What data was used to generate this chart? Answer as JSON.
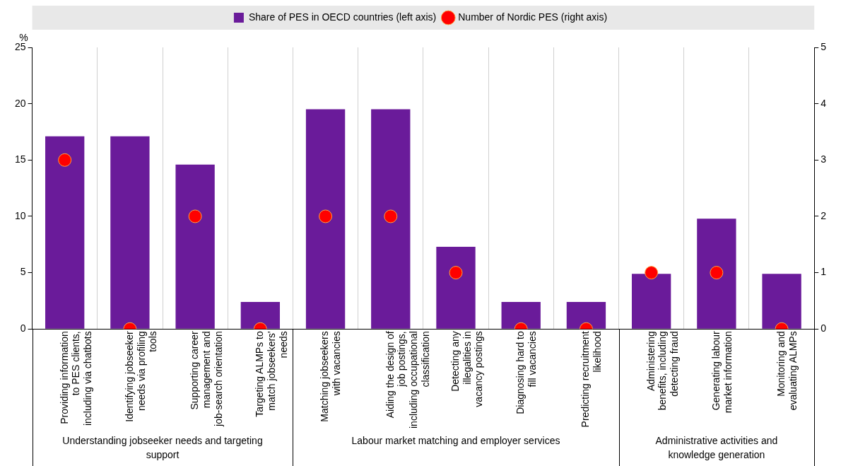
{
  "chart_data": {
    "type": "bar",
    "categories": [
      "Providing information to PES clients, including via chatbots",
      "Identifying jobseeker needs via profiling tools",
      "Supporting career management and job-search orientation",
      "Targeting ALMPs to match jobseekers' needs",
      "Matching jobseekers with vacancies",
      "Aiding the design of job postings, including occupational classification",
      "Detecting any illegalities in vacancy postings",
      "Diagnosing hard to fill vacancies",
      "Predicting recruitment likelihood",
      "Administering benefits, including detecting fraud",
      "Generating labour market information",
      "Monitoring and evaluating ALMPs"
    ],
    "series": [
      {
        "name": "Share of PES in OECD countries (left axis)",
        "type": "bar",
        "color": "#6a1b9a",
        "values": [
          17.1,
          17.1,
          14.6,
          2.4,
          19.5,
          19.5,
          7.3,
          2.4,
          2.4,
          4.9,
          9.8,
          4.9
        ]
      },
      {
        "name": "Number of Nordic PES (right axis)",
        "type": "scatter",
        "axis": "y2",
        "color": "#ff0000",
        "values": [
          3,
          0,
          2,
          0,
          2,
          2,
          1,
          0,
          0,
          1,
          1,
          0
        ]
      }
    ],
    "ylabel": "%",
    "ylim": [
      0,
      25
    ],
    "yticks": [
      0,
      5,
      10,
      15,
      20,
      25
    ],
    "y2lim": [
      0,
      5
    ],
    "y2ticks": [
      0,
      1,
      2,
      3,
      4,
      5
    ],
    "annotations": [
      "Understanding jobseeker needs and targeting support",
      "Labour market matching and employer services",
      "Administrative activities and knowledge generation"
    ],
    "grid": "x",
    "legend": "top",
    "marker": "circle"
  }
}
